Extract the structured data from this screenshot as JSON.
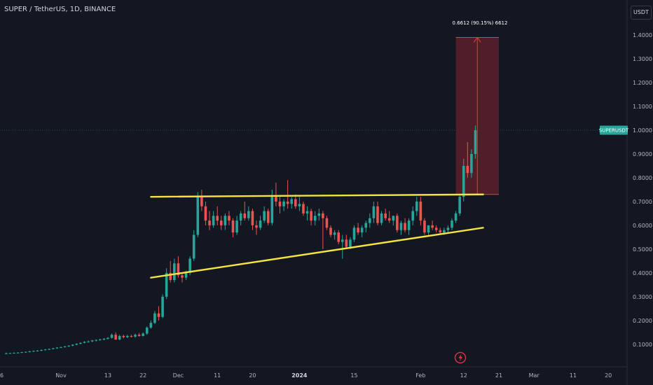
{
  "header": {
    "title": "SUPER / TetherUS, 1D, BINANCE",
    "currency_button": "USDT"
  },
  "price_tag": {
    "label": "SUPERUSDT"
  },
  "target_label": "0.6612 (90.15%) 6612",
  "event_icon": "lightning-icon",
  "colors": {
    "background": "#131722",
    "bull": "#26a69a",
    "bear": "#ef5350",
    "trendline": "#f5e342",
    "target_zone": "#5d1f29",
    "target_border": "#f23645",
    "price_line": "#26a69a"
  },
  "chart_data": {
    "type": "candlestick",
    "y_axis_labels": [
      "1.4000",
      "1.3000",
      "1.2000",
      "1.1000",
      "1.0000",
      "0.9000",
      "0.8000",
      "0.7000",
      "0.6000",
      "0.5000",
      "0.4000",
      "0.3000",
      "0.2000",
      "0.1000"
    ],
    "y_axis_values": [
      1.4,
      1.3,
      1.2,
      1.1,
      1.0,
      0.9,
      0.8,
      0.7,
      0.6,
      0.5,
      0.4,
      0.3,
      0.2,
      0.1
    ],
    "x_axis_labels": [
      {
        "label": "6",
        "day": -26
      },
      {
        "label": "Nov",
        "day": 0
      },
      {
        "label": "13",
        "day": 12
      },
      {
        "label": "22",
        "day": 21
      },
      {
        "label": "Dec",
        "day": 30
      },
      {
        "label": "11",
        "day": 40
      },
      {
        "label": "20",
        "day": 49
      },
      {
        "label": "2024",
        "day": 61,
        "bold": true
      },
      {
        "label": "15",
        "day": 75
      },
      {
        "label": "Feb",
        "day": 92
      },
      {
        "label": "12",
        "day": 103
      },
      {
        "label": "21",
        "day": 112
      },
      {
        "label": "Mar",
        "day": 121
      },
      {
        "label": "11",
        "day": 131
      },
      {
        "label": "20",
        "day": 140
      }
    ],
    "candles": [
      [
        0.06,
        0.065,
        0.058,
        0.062
      ],
      [
        0.062,
        0.064,
        0.06,
        0.063
      ],
      [
        0.063,
        0.066,
        0.061,
        0.064
      ],
      [
        0.064,
        0.067,
        0.062,
        0.065
      ],
      [
        0.065,
        0.068,
        0.063,
        0.067
      ],
      [
        0.067,
        0.07,
        0.065,
        0.068
      ],
      [
        0.068,
        0.072,
        0.066,
        0.07
      ],
      [
        0.07,
        0.074,
        0.068,
        0.072
      ],
      [
        0.072,
        0.076,
        0.07,
        0.073
      ],
      [
        0.073,
        0.078,
        0.071,
        0.076
      ],
      [
        0.076,
        0.08,
        0.074,
        0.078
      ],
      [
        0.078,
        0.082,
        0.076,
        0.08
      ],
      [
        0.08,
        0.085,
        0.078,
        0.083
      ],
      [
        0.083,
        0.088,
        0.081,
        0.086
      ],
      [
        0.086,
        0.09,
        0.084,
        0.088
      ],
      [
        0.088,
        0.093,
        0.086,
        0.091
      ],
      [
        0.091,
        0.096,
        0.089,
        0.094
      ],
      [
        0.094,
        0.1,
        0.092,
        0.098
      ],
      [
        0.098,
        0.104,
        0.096,
        0.102
      ],
      [
        0.102,
        0.108,
        0.1,
        0.106
      ],
      [
        0.106,
        0.113,
        0.104,
        0.11
      ],
      [
        0.11,
        0.116,
        0.107,
        0.112
      ],
      [
        0.112,
        0.118,
        0.109,
        0.116
      ],
      [
        0.116,
        0.121,
        0.112,
        0.118
      ],
      [
        0.118,
        0.124,
        0.115,
        0.12
      ],
      [
        0.12,
        0.126,
        0.117,
        0.123
      ],
      [
        0.123,
        0.13,
        0.12,
        0.127
      ],
      [
        0.127,
        0.145,
        0.124,
        0.14
      ],
      [
        0.14,
        0.15,
        0.118,
        0.12
      ],
      [
        0.12,
        0.14,
        0.117,
        0.135
      ],
      [
        0.135,
        0.14,
        0.125,
        0.13
      ],
      [
        0.13,
        0.14,
        0.126,
        0.135
      ],
      [
        0.135,
        0.14,
        0.128,
        0.132
      ],
      [
        0.132,
        0.145,
        0.128,
        0.14
      ],
      [
        0.14,
        0.148,
        0.132,
        0.135
      ],
      [
        0.135,
        0.15,
        0.133,
        0.145
      ],
      [
        0.145,
        0.175,
        0.14,
        0.17
      ],
      [
        0.17,
        0.2,
        0.165,
        0.19
      ],
      [
        0.19,
        0.24,
        0.185,
        0.23
      ],
      [
        0.23,
        0.26,
        0.2,
        0.215
      ],
      [
        0.215,
        0.31,
        0.21,
        0.3
      ],
      [
        0.3,
        0.42,
        0.29,
        0.4
      ],
      [
        0.4,
        0.45,
        0.36,
        0.37
      ],
      [
        0.37,
        0.46,
        0.36,
        0.44
      ],
      [
        0.44,
        0.47,
        0.38,
        0.39
      ],
      [
        0.39,
        0.4,
        0.36,
        0.38
      ],
      [
        0.38,
        0.41,
        0.37,
        0.4
      ],
      [
        0.4,
        0.47,
        0.39,
        0.46
      ],
      [
        0.46,
        0.58,
        0.45,
        0.56
      ],
      [
        0.56,
        0.74,
        0.55,
        0.72
      ],
      [
        0.72,
        0.75,
        0.66,
        0.68
      ],
      [
        0.68,
        0.7,
        0.6,
        0.62
      ],
      [
        0.62,
        0.66,
        0.58,
        0.6
      ],
      [
        0.6,
        0.66,
        0.59,
        0.64
      ],
      [
        0.64,
        0.68,
        0.6,
        0.62
      ],
      [
        0.62,
        0.64,
        0.58,
        0.6
      ],
      [
        0.6,
        0.65,
        0.58,
        0.64
      ],
      [
        0.64,
        0.66,
        0.6,
        0.62
      ],
      [
        0.62,
        0.63,
        0.55,
        0.57
      ],
      [
        0.57,
        0.64,
        0.56,
        0.62
      ],
      [
        0.62,
        0.66,
        0.6,
        0.65
      ],
      [
        0.65,
        0.7,
        0.62,
        0.63
      ],
      [
        0.63,
        0.68,
        0.62,
        0.66
      ],
      [
        0.66,
        0.67,
        0.58,
        0.6
      ],
      [
        0.6,
        0.62,
        0.56,
        0.59
      ],
      [
        0.59,
        0.64,
        0.58,
        0.62
      ],
      [
        0.62,
        0.68,
        0.61,
        0.66
      ],
      [
        0.66,
        0.67,
        0.6,
        0.61
      ],
      [
        0.61,
        0.75,
        0.6,
        0.72
      ],
      [
        0.72,
        0.78,
        0.68,
        0.7
      ],
      [
        0.7,
        0.72,
        0.65,
        0.68
      ],
      [
        0.68,
        0.71,
        0.66,
        0.7
      ],
      [
        0.7,
        0.79,
        0.67,
        0.69
      ],
      [
        0.69,
        0.72,
        0.67,
        0.71
      ],
      [
        0.71,
        0.73,
        0.67,
        0.68
      ],
      [
        0.68,
        0.72,
        0.66,
        0.69
      ],
      [
        0.69,
        0.7,
        0.64,
        0.65
      ],
      [
        0.65,
        0.68,
        0.62,
        0.66
      ],
      [
        0.66,
        0.67,
        0.6,
        0.62
      ],
      [
        0.62,
        0.66,
        0.6,
        0.64
      ],
      [
        0.64,
        0.67,
        0.62,
        0.65
      ],
      [
        0.65,
        0.66,
        0.5,
        0.63
      ],
      [
        0.63,
        0.64,
        0.58,
        0.59
      ],
      [
        0.59,
        0.6,
        0.55,
        0.56
      ],
      [
        0.56,
        0.58,
        0.54,
        0.57
      ],
      [
        0.57,
        0.58,
        0.52,
        0.53
      ],
      [
        0.53,
        0.56,
        0.46,
        0.54
      ],
      [
        0.54,
        0.56,
        0.5,
        0.51
      ],
      [
        0.51,
        0.55,
        0.5,
        0.54
      ],
      [
        0.54,
        0.6,
        0.53,
        0.59
      ],
      [
        0.59,
        0.61,
        0.56,
        0.57
      ],
      [
        0.57,
        0.6,
        0.55,
        0.59
      ],
      [
        0.59,
        0.62,
        0.57,
        0.61
      ],
      [
        0.61,
        0.65,
        0.59,
        0.63
      ],
      [
        0.63,
        0.7,
        0.61,
        0.68
      ],
      [
        0.68,
        0.7,
        0.6,
        0.61
      ],
      [
        0.61,
        0.66,
        0.6,
        0.65
      ],
      [
        0.65,
        0.67,
        0.62,
        0.63
      ],
      [
        0.63,
        0.66,
        0.61,
        0.62
      ],
      [
        0.62,
        0.64,
        0.6,
        0.64
      ],
      [
        0.64,
        0.65,
        0.57,
        0.58
      ],
      [
        0.58,
        0.62,
        0.56,
        0.61
      ],
      [
        0.61,
        0.63,
        0.57,
        0.58
      ],
      [
        0.58,
        0.63,
        0.56,
        0.62
      ],
      [
        0.62,
        0.68,
        0.6,
        0.66
      ],
      [
        0.66,
        0.72,
        0.64,
        0.7
      ],
      [
        0.7,
        0.72,
        0.6,
        0.62
      ],
      [
        0.62,
        0.63,
        0.56,
        0.57
      ],
      [
        0.57,
        0.6,
        0.56,
        0.6
      ],
      [
        0.6,
        0.62,
        0.58,
        0.59
      ],
      [
        0.59,
        0.6,
        0.57,
        0.58
      ],
      [
        0.58,
        0.59,
        0.56,
        0.57
      ],
      [
        0.57,
        0.59,
        0.56,
        0.58
      ],
      [
        0.58,
        0.6,
        0.57,
        0.59
      ],
      [
        0.59,
        0.63,
        0.58,
        0.62
      ],
      [
        0.62,
        0.66,
        0.61,
        0.65
      ],
      [
        0.65,
        0.73,
        0.64,
        0.72
      ],
      [
        0.72,
        0.88,
        0.7,
        0.85
      ],
      [
        0.85,
        0.95,
        0.8,
        0.82
      ],
      [
        0.82,
        0.92,
        0.8,
        0.9
      ],
      [
        0.9,
        1.02,
        0.88,
        1.0
      ]
    ],
    "trendlines": [
      {
        "name": "resistance",
        "from": {
          "day": 23,
          "price": 0.72
        },
        "to": {
          "day": 108,
          "price": 0.73
        }
      },
      {
        "name": "support",
        "from": {
          "day": 23,
          "price": 0.38
        },
        "to": {
          "day": 108,
          "price": 0.59
        }
      }
    ],
    "target_zone": {
      "from_day": 101,
      "to_day": 112,
      "bottom": 0.73,
      "top": 1.39
    },
    "current_price": 1.0
  }
}
